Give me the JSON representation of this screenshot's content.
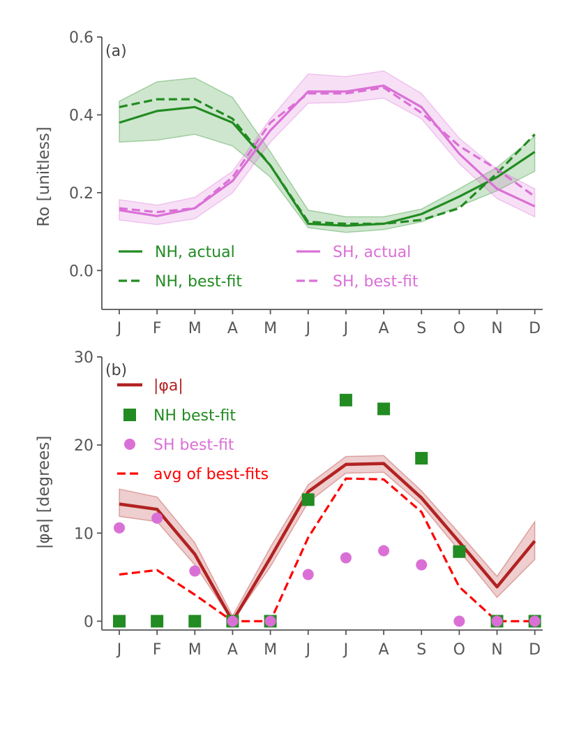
{
  "colors": {
    "nh": "#228B22",
    "sh": "#DA70D6",
    "phi": "#B22222",
    "avg": "#FF0000",
    "axis": "#555555"
  },
  "months": [
    "J",
    "F",
    "M",
    "A",
    "M",
    "J",
    "J",
    "A",
    "S",
    "O",
    "N",
    "D"
  ],
  "chart_data": [
    {
      "type": "line",
      "panel_label": "(a)",
      "ylabel": "Ro [unitless]",
      "ylim": [
        -0.1,
        0.6
      ],
      "yticks": [
        0.0,
        0.2,
        0.4,
        0.6
      ],
      "ytick_labels": [
        "0.0",
        "0.2",
        "0.4",
        "0.6"
      ],
      "legend_position": "bottom-left",
      "legend": [
        {
          "label": "NH, actual",
          "color": "nh",
          "style": "solid"
        },
        {
          "label": "NH, best-fit",
          "color": "nh",
          "style": "dashed"
        },
        {
          "label": "SH, actual",
          "color": "sh",
          "style": "solid"
        },
        {
          "label": "SH, best-fit",
          "color": "sh",
          "style": "dashed"
        }
      ],
      "series": [
        {
          "name": "NH, actual",
          "color": "nh",
          "style": "solid",
          "values": [
            0.38,
            0.41,
            0.42,
            0.38,
            0.27,
            0.12,
            0.115,
            0.12,
            0.145,
            0.19,
            0.24,
            0.305
          ],
          "band_lower": [
            0.33,
            0.335,
            0.35,
            0.32,
            0.24,
            0.11,
            0.098,
            0.105,
            0.125,
            0.165,
            0.205,
            0.255
          ],
          "band_upper": [
            0.435,
            0.485,
            0.495,
            0.445,
            0.305,
            0.155,
            0.138,
            0.138,
            0.158,
            0.21,
            0.265,
            0.345
          ]
        },
        {
          "name": "NH, best-fit",
          "color": "nh",
          "style": "dashed",
          "values": [
            0.42,
            0.44,
            0.44,
            0.39,
            0.27,
            0.125,
            0.12,
            0.12,
            0.13,
            0.16,
            0.25,
            0.35
          ]
        },
        {
          "name": "SH, actual",
          "color": "sh",
          "style": "solid",
          "values": [
            0.155,
            0.14,
            0.16,
            0.23,
            0.36,
            0.46,
            0.46,
            0.475,
            0.42,
            0.3,
            0.21,
            0.165
          ],
          "band_lower": [
            0.13,
            0.118,
            0.133,
            0.2,
            0.33,
            0.43,
            0.432,
            0.443,
            0.39,
            0.275,
            0.185,
            0.138
          ],
          "band_upper": [
            0.182,
            0.168,
            0.188,
            0.255,
            0.39,
            0.505,
            0.498,
            0.513,
            0.455,
            0.34,
            0.26,
            0.21
          ]
        },
        {
          "name": "SH, best-fit",
          "color": "sh",
          "style": "dashed",
          "values": [
            0.16,
            0.15,
            0.16,
            0.24,
            0.38,
            0.455,
            0.455,
            0.47,
            0.405,
            0.32,
            0.26,
            0.19
          ]
        }
      ]
    },
    {
      "type": "line",
      "panel_label": "(b)",
      "ylabel": "|φa| [degrees]",
      "ylim": [
        -1,
        30
      ],
      "yticks": [
        0,
        10,
        20,
        30
      ],
      "ytick_labels": [
        "0",
        "10",
        "20",
        "30"
      ],
      "legend_position": "top-left",
      "legend": [
        {
          "label": "|φa|",
          "color": "phi",
          "style": "solid"
        },
        {
          "label": "NH best-fit",
          "color": "nh",
          "style": "square"
        },
        {
          "label": "SH best-fit",
          "color": "sh",
          "style": "circle"
        },
        {
          "label": "avg of best-fits",
          "color": "avg",
          "style": "dashed"
        }
      ],
      "series": [
        {
          "name": "|φa|",
          "color": "phi",
          "style": "solid",
          "values": [
            13.3,
            12.7,
            7.6,
            0,
            7.2,
            14.7,
            17.8,
            17.9,
            14.0,
            9.0,
            3.9,
            9.1
          ],
          "band_lower": [
            11.9,
            11.3,
            6.4,
            0,
            6.2,
            13.5,
            16.8,
            16.9,
            13.2,
            8.0,
            2.7,
            7.0
          ],
          "band_upper": [
            15.0,
            14.1,
            8.9,
            0.6,
            8.4,
            15.5,
            18.7,
            18.8,
            14.8,
            10.0,
            5.1,
            11.3
          ]
        },
        {
          "name": "avg of best-fits",
          "color": "avg",
          "style": "dashed",
          "values": [
            5.3,
            5.8,
            3.0,
            0,
            0,
            9.5,
            16.2,
            16.1,
            12.4,
            3.9,
            0,
            0
          ]
        },
        {
          "name": "NH best-fit",
          "color": "nh",
          "style": "square",
          "values": [
            0,
            0,
            0,
            0,
            0,
            13.8,
            25.1,
            24.1,
            18.5,
            7.9,
            0,
            0
          ]
        },
        {
          "name": "SH best-fit",
          "color": "sh",
          "style": "circle",
          "values": [
            10.6,
            11.7,
            5.7,
            0,
            0,
            5.3,
            7.2,
            8.0,
            6.4,
            0,
            0,
            0
          ]
        }
      ]
    }
  ]
}
